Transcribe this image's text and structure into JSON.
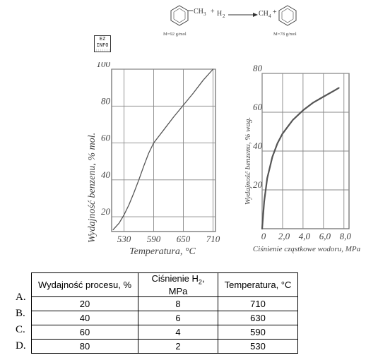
{
  "reaction": {
    "toluene_sub": "CH",
    "toluene_sub_n": "3",
    "plus1": "+",
    "h2": "H",
    "h2_n": "2",
    "methane": "CH",
    "methane_n": "4",
    "plus2": "+",
    "toluene_mass": "M=92 g/mol",
    "benzene_mass": "M=78 g/mol"
  },
  "logo": {
    "line1": "EZ",
    "line2": "INFO"
  },
  "chart_data": [
    {
      "type": "line",
      "xlabel": "Temperatura, °C",
      "ylabel": "Wydajność benzenu, % mol.",
      "xticks": [
        "530",
        "590",
        "650",
        "710"
      ],
      "yticks": [
        "20",
        "40",
        "60",
        "80",
        "100"
      ],
      "xlim": [
        505,
        715
      ],
      "ylim": [
        12,
        100
      ],
      "grid": true,
      "x": [
        508,
        520,
        530,
        540,
        550,
        560,
        570,
        580,
        590,
        610,
        630,
        650,
        670,
        690,
        710
      ],
      "y": [
        13,
        16.5,
        21,
        26.5,
        33,
        40,
        47.5,
        54.5,
        60,
        67,
        74,
        80.5,
        87,
        94,
        100
      ]
    },
    {
      "type": "line",
      "xlabel": "Ciśnienie cząstkowe wodoru, MPa",
      "ylabel": "Wydajność benzenu, % wag.",
      "xticks": [
        "0",
        "2,0",
        "4,0",
        "6,0",
        "8,0"
      ],
      "yticks": [
        "20",
        "40",
        "60",
        "80"
      ],
      "xlim": [
        0,
        8.5
      ],
      "ylim": [
        0,
        80
      ],
      "grid": true,
      "x": [
        0,
        0.2,
        0.5,
        1.0,
        1.5,
        2.0,
        3.0,
        4.0,
        5.0,
        6.0,
        7.0,
        7.5
      ],
      "y": [
        0,
        14,
        26,
        37,
        44,
        49,
        56,
        61,
        65,
        68,
        71,
        72.5
      ]
    }
  ],
  "table": {
    "headers": [
      "Wydajność procesu, %",
      "Ciśnienie H",
      "Temperatura, °C"
    ],
    "header2_sub": "2",
    "header2_tail": ", MPa",
    "rows": [
      {
        "letter": "A.",
        "cells": [
          "20",
          "8",
          "710"
        ]
      },
      {
        "letter": "B.",
        "cells": [
          "40",
          "6",
          "630"
        ]
      },
      {
        "letter": "C.",
        "cells": [
          "60",
          "4",
          "590"
        ]
      },
      {
        "letter": "D.",
        "cells": [
          "80",
          "2",
          "530"
        ]
      }
    ]
  }
}
